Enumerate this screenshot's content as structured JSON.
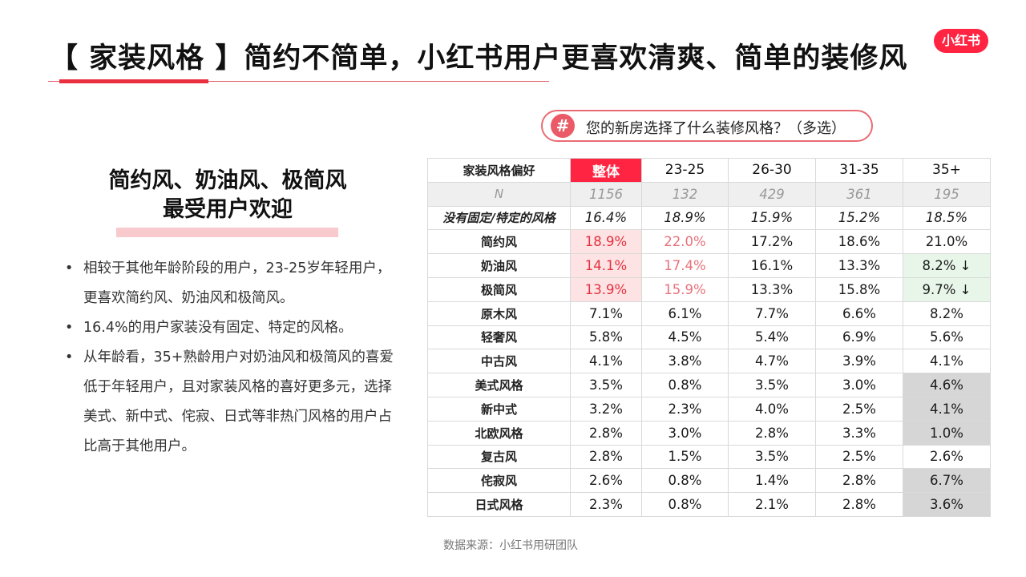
{
  "header": {
    "title": "【 家装风格 】简约不简单，小红书用户更喜欢清爽、简单的装修风",
    "logo_text": "小红书"
  },
  "question": {
    "icon": "#",
    "text": "您的新房选择了什么装修风格？（多选）"
  },
  "left": {
    "headline_line1": "简约风、奶油风、极简风",
    "headline_line2": "最受用户欢迎",
    "bullets": [
      "相较于其他年龄阶段的用户，23-25岁年轻用户，更喜欢简约风、奶油风和极简风。",
      "16.4%的用户家装没有固定、特定的风格。",
      "从年龄看，35+熟龄用户对奶油风和极简风的喜爱低于年轻用户，且对家装风格的喜好更多元，选择美式、新中式、侘寂、日式等非热门风格的用户占比高于其他用户。"
    ]
  },
  "table": {
    "headers": [
      "家装风格偏好",
      "整体",
      "23-25",
      "26-30",
      "31-35",
      "35+"
    ],
    "n_row": [
      "N",
      "1156",
      "132",
      "429",
      "361",
      "195"
    ],
    "rows": [
      [
        "没有固定/特定的风格",
        "16.4%",
        "18.9%",
        "15.9%",
        "15.2%",
        "18.5%"
      ],
      [
        "简约风",
        "18.9%",
        "22.0%",
        "17.2%",
        "18.6%",
        "21.0%"
      ],
      [
        "奶油风",
        "14.1%",
        "17.4%",
        "16.1%",
        "13.3%",
        "8.2% ↓"
      ],
      [
        "极简风",
        "13.9%",
        "15.9%",
        "13.3%",
        "15.8%",
        "9.7% ↓"
      ],
      [
        "原木风",
        "7.1%",
        "6.1%",
        "7.7%",
        "6.6%",
        "8.2%"
      ],
      [
        "轻奢风",
        "5.8%",
        "4.5%",
        "5.4%",
        "6.9%",
        "5.6%"
      ],
      [
        "中古风",
        "4.1%",
        "3.8%",
        "4.7%",
        "3.9%",
        "4.1%"
      ],
      [
        "美式风格",
        "3.5%",
        "0.8%",
        "3.5%",
        "3.0%",
        "4.6%"
      ],
      [
        "新中式",
        "3.2%",
        "2.3%",
        "4.0%",
        "2.5%",
        "4.1%"
      ],
      [
        "北欧风格",
        "2.8%",
        "3.0%",
        "2.8%",
        "3.3%",
        "1.0%"
      ],
      [
        "复古风",
        "2.8%",
        "1.5%",
        "3.5%",
        "2.5%",
        "2.6%"
      ],
      [
        "侘寂风",
        "2.6%",
        "0.8%",
        "1.4%",
        "2.8%",
        "6.7%"
      ],
      [
        "日式风格",
        "2.3%",
        "0.8%",
        "2.1%",
        "2.8%",
        "3.6%"
      ]
    ]
  },
  "source": "数据来源：小红书用研团队",
  "colors": {
    "brand_red": "#ff2442",
    "highlight_pink": "#fde3e4",
    "highlight_green": "#e8f6ea",
    "highlight_gray": "#d6d6d6"
  }
}
